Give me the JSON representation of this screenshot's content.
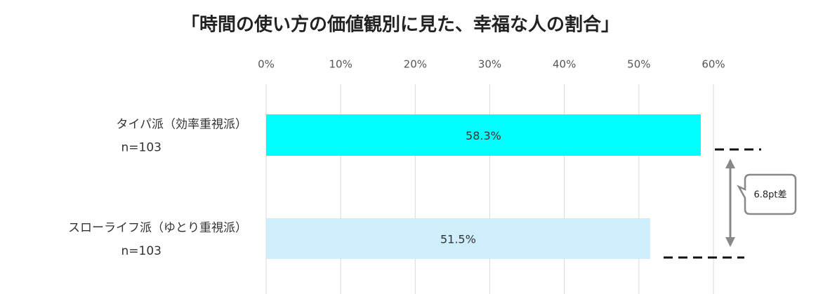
{
  "chart_data": {
    "type": "hbar",
    "title": "「時間の使い方の価値観別に見た、幸福な人の割合」",
    "categories": [
      "タイパ派（効率重視派）",
      "スローライフ派（ゆとり重視派）"
    ],
    "sample_sizes": [
      "n=103",
      "n=103"
    ],
    "values": [
      58.3,
      51.5
    ],
    "value_labels": [
      "58.3%",
      "51.5%"
    ],
    "colors": [
      "#00ffff",
      "#cdeefa"
    ],
    "xlim": [
      0,
      60
    ],
    "xticks": [
      {
        "value": 0,
        "label": "0%"
      },
      {
        "value": 10,
        "label": "10%"
      },
      {
        "value": 20,
        "label": "20%"
      },
      {
        "value": 30,
        "label": "30%"
      },
      {
        "value": 40,
        "label": "40%"
      },
      {
        "value": 50,
        "label": "50%"
      },
      {
        "value": 60,
        "label": "60%"
      }
    ],
    "grid": true,
    "annotation": "6.8pt差"
  }
}
